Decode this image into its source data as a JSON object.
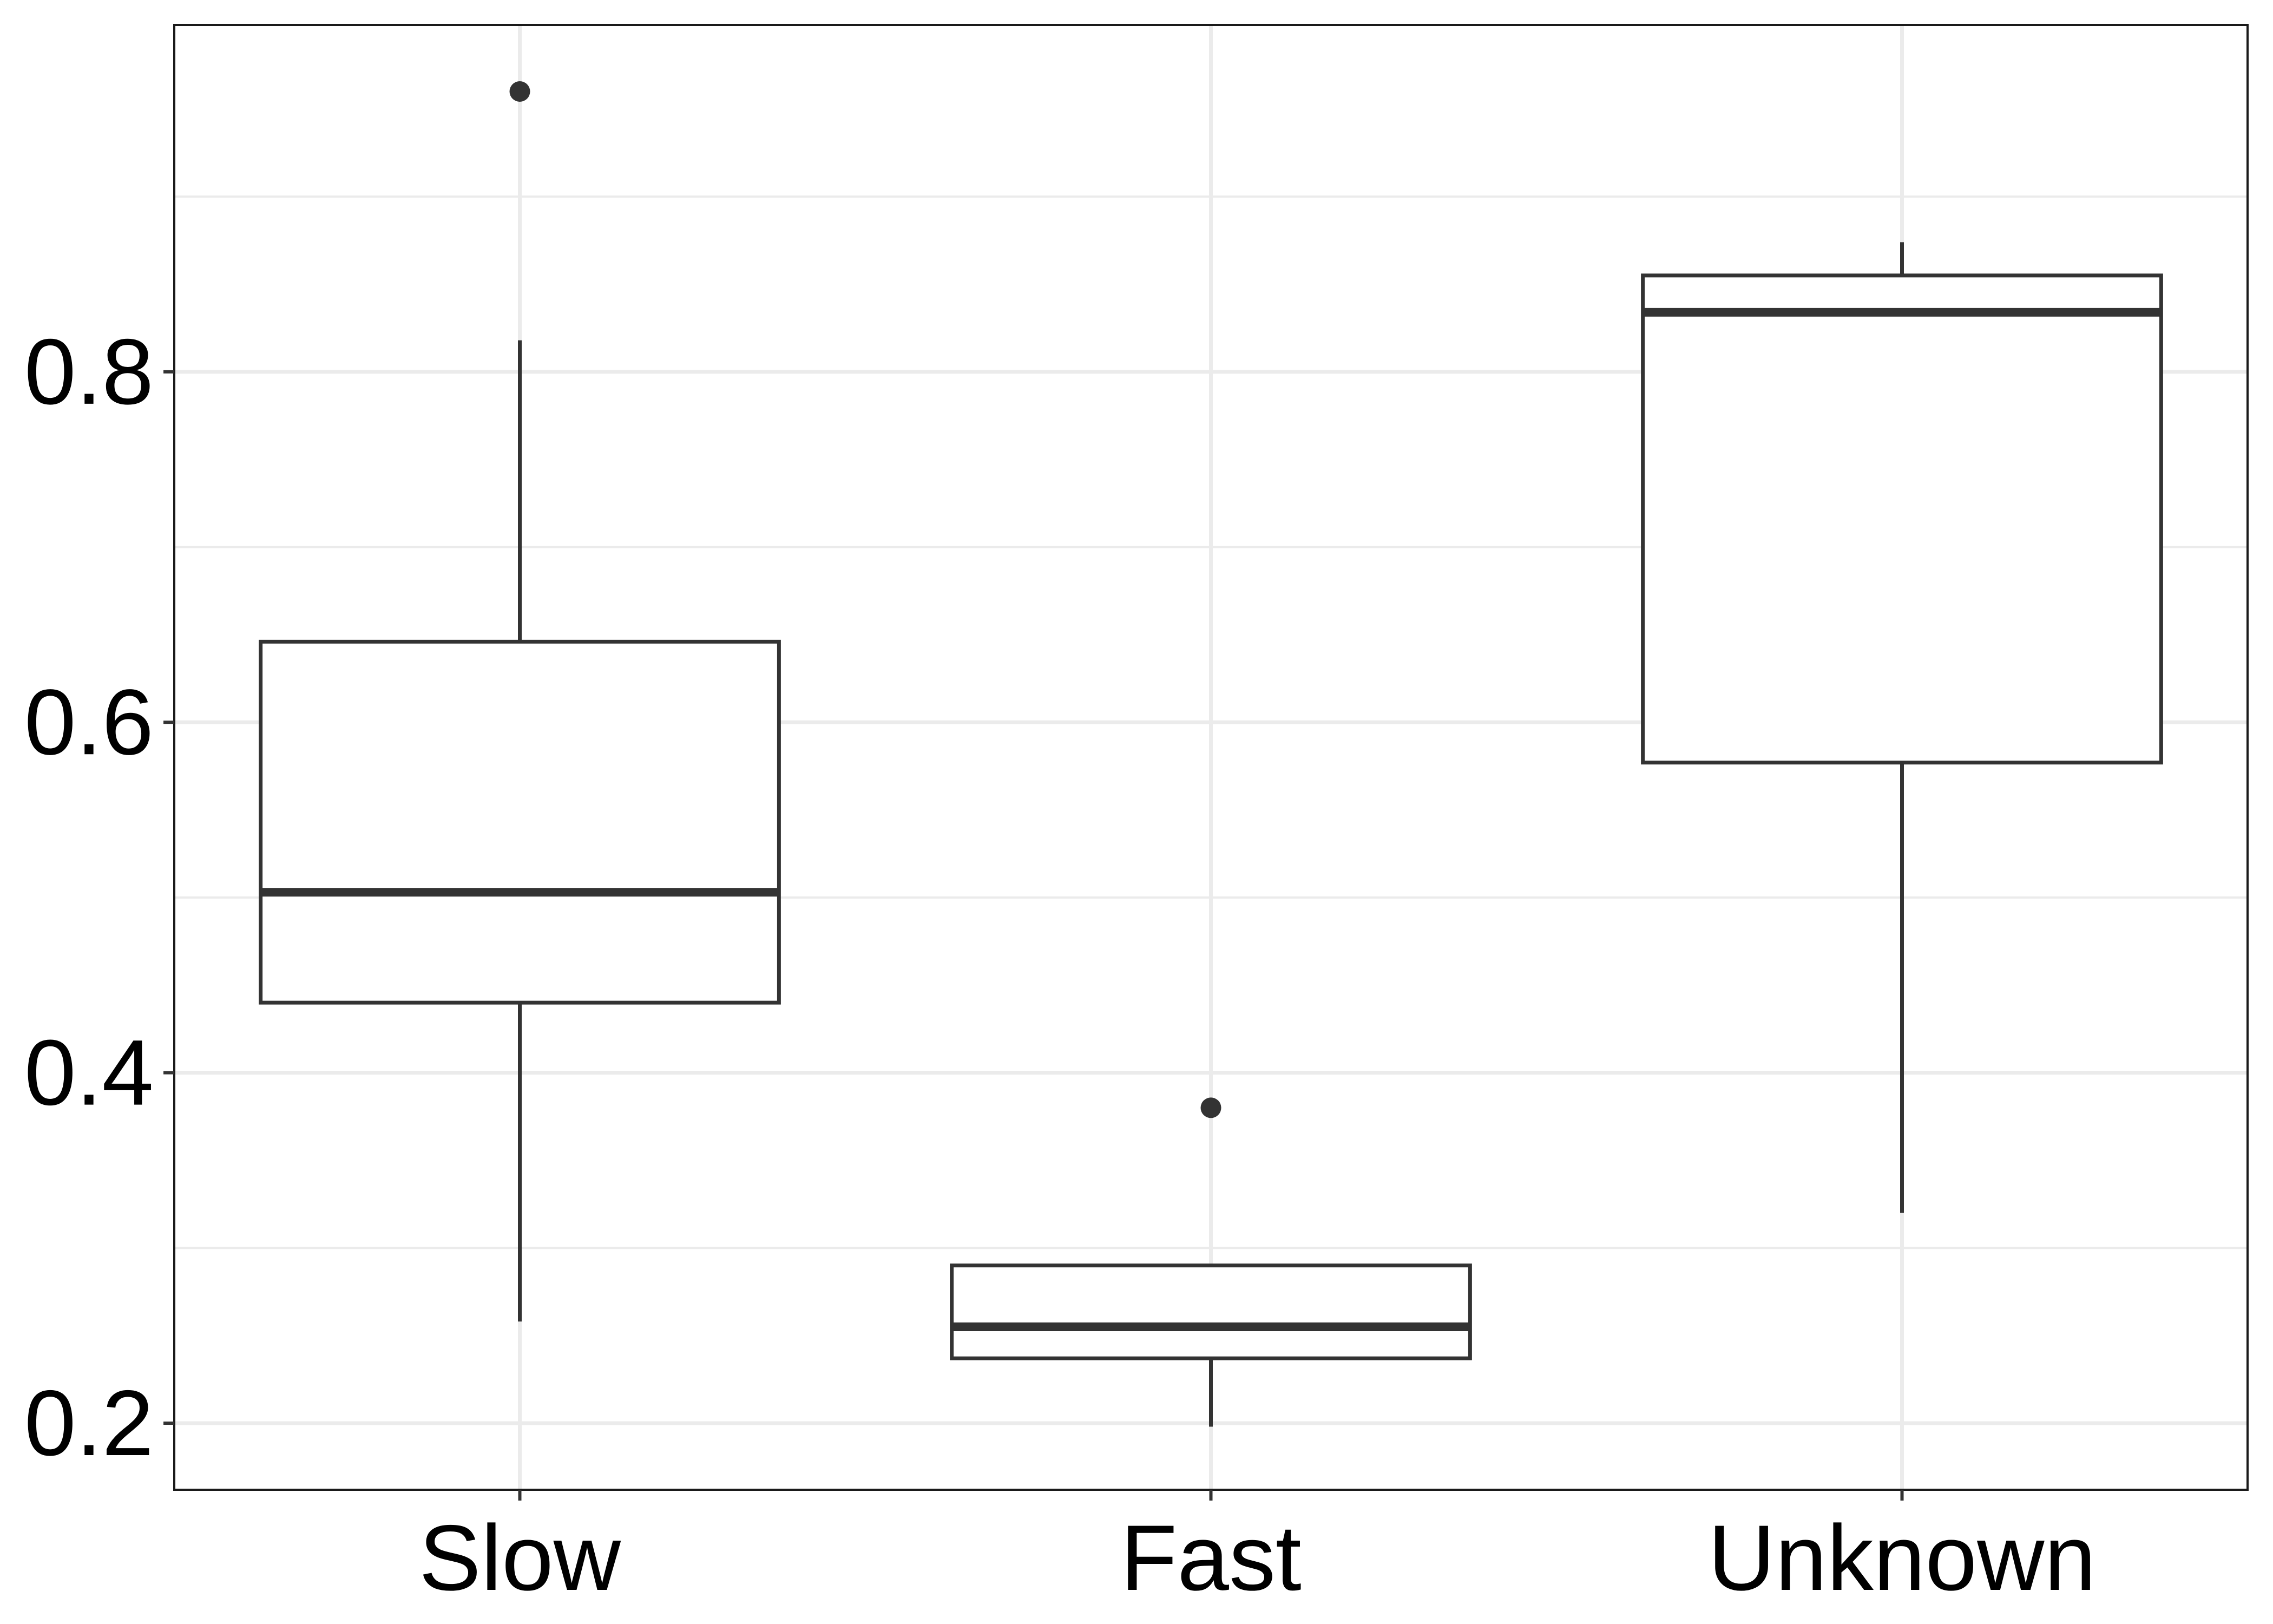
{
  "chart_data": {
    "type": "boxplot",
    "title": "",
    "xlabel": "",
    "ylabel": "",
    "categories": [
      "Slow",
      "Fast",
      "Unknown"
    ],
    "boxes": [
      {
        "category": "Slow",
        "whisker_low": 0.258,
        "q1": 0.44,
        "median": 0.503,
        "q3": 0.646,
        "whisker_high": 0.818,
        "outliers": [
          0.96
        ]
      },
      {
        "category": "Fast",
        "whisker_low": 0.198,
        "q1": 0.237,
        "median": 0.255,
        "q3": 0.29,
        "whisker_high": 0.29,
        "outliers": [
          0.38
        ]
      },
      {
        "category": "Unknown",
        "whisker_low": 0.32,
        "q1": 0.577,
        "median": 0.834,
        "q3": 0.855,
        "whisker_high": 0.874,
        "outliers": []
      }
    ],
    "yticks": [
      "0.2",
      "0.4",
      "0.6",
      "0.8"
    ],
    "ytick_values": [
      0.2,
      0.4,
      0.6,
      0.8
    ],
    "y_minor_grid": [
      0.3,
      0.5,
      0.7,
      0.9
    ],
    "ylim": [
      0.162,
      0.998
    ],
    "grid": true,
    "legend": "none",
    "colors": {
      "box_stroke": "#333333",
      "grid": "#ebebeb",
      "panel_border": "#1a1a1a",
      "background": "#ffffff",
      "text": "#000000"
    }
  }
}
